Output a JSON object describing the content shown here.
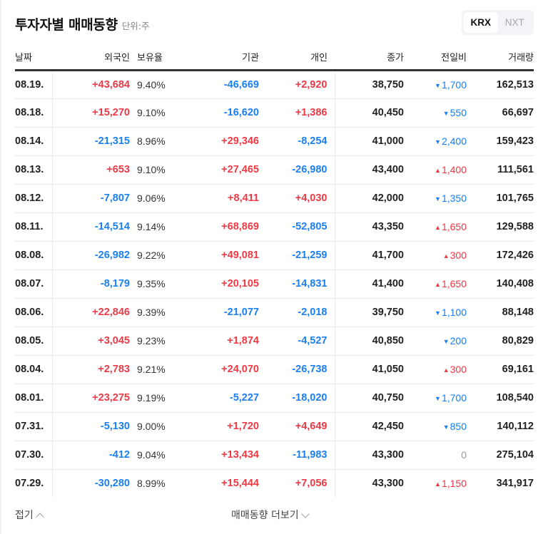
{
  "header": {
    "title": "투자자별 매매동향",
    "unit": "단위:주",
    "market_tabs": [
      {
        "label": "KRX",
        "active": true
      },
      {
        "label": "NXT",
        "active": false
      }
    ]
  },
  "table": {
    "columns": [
      "날짜",
      "외국인",
      "보유율",
      "기관",
      "개인",
      "종가",
      "전일비",
      "거래량"
    ],
    "rows": [
      {
        "date": "08.19.",
        "foreign": "+43,684",
        "foreign_dir": "up",
        "ratio": "9.40%",
        "inst": "-46,669",
        "inst_dir": "down",
        "indiv": "+2,920",
        "indiv_dir": "up",
        "close": "38,750",
        "change": "1,700",
        "change_dir": "down",
        "volume": "162,513"
      },
      {
        "date": "08.18.",
        "foreign": "+15,270",
        "foreign_dir": "up",
        "ratio": "9.10%",
        "inst": "-16,620",
        "inst_dir": "down",
        "indiv": "+1,386",
        "indiv_dir": "up",
        "close": "40,450",
        "change": "550",
        "change_dir": "down",
        "volume": "66,697"
      },
      {
        "date": "08.14.",
        "foreign": "-21,315",
        "foreign_dir": "down",
        "ratio": "8.96%",
        "inst": "+29,346",
        "inst_dir": "up",
        "indiv": "-8,254",
        "indiv_dir": "down",
        "close": "41,000",
        "change": "2,400",
        "change_dir": "down",
        "volume": "159,423"
      },
      {
        "date": "08.13.",
        "foreign": "+653",
        "foreign_dir": "up",
        "ratio": "9.10%",
        "inst": "+27,465",
        "inst_dir": "up",
        "indiv": "-26,980",
        "indiv_dir": "down",
        "close": "43,400",
        "change": "1,400",
        "change_dir": "up",
        "volume": "111,561"
      },
      {
        "date": "08.12.",
        "foreign": "-7,807",
        "foreign_dir": "down",
        "ratio": "9.06%",
        "inst": "+8,411",
        "inst_dir": "up",
        "indiv": "+4,030",
        "indiv_dir": "up",
        "close": "42,000",
        "change": "1,350",
        "change_dir": "down",
        "volume": "101,765"
      },
      {
        "date": "08.11.",
        "foreign": "-14,514",
        "foreign_dir": "down",
        "ratio": "9.14%",
        "inst": "+68,869",
        "inst_dir": "up",
        "indiv": "-52,805",
        "indiv_dir": "down",
        "close": "43,350",
        "change": "1,650",
        "change_dir": "up",
        "volume": "129,588"
      },
      {
        "date": "08.08.",
        "foreign": "-26,982",
        "foreign_dir": "down",
        "ratio": "9.22%",
        "inst": "+49,081",
        "inst_dir": "up",
        "indiv": "-21,259",
        "indiv_dir": "down",
        "close": "41,700",
        "change": "300",
        "change_dir": "up",
        "volume": "172,426"
      },
      {
        "date": "08.07.",
        "foreign": "-8,179",
        "foreign_dir": "down",
        "ratio": "9.35%",
        "inst": "+20,105",
        "inst_dir": "up",
        "indiv": "-14,831",
        "indiv_dir": "down",
        "close": "41,400",
        "change": "1,650",
        "change_dir": "up",
        "volume": "140,408"
      },
      {
        "date": "08.06.",
        "foreign": "+22,846",
        "foreign_dir": "up",
        "ratio": "9.39%",
        "inst": "-21,077",
        "inst_dir": "down",
        "indiv": "-2,018",
        "indiv_dir": "down",
        "close": "39,750",
        "change": "1,100",
        "change_dir": "down",
        "volume": "88,148"
      },
      {
        "date": "08.05.",
        "foreign": "+3,045",
        "foreign_dir": "up",
        "ratio": "9.23%",
        "inst": "+1,874",
        "inst_dir": "up",
        "indiv": "-4,527",
        "indiv_dir": "down",
        "close": "40,850",
        "change": "200",
        "change_dir": "down",
        "volume": "80,829"
      },
      {
        "date": "08.04.",
        "foreign": "+2,783",
        "foreign_dir": "up",
        "ratio": "9.21%",
        "inst": "+24,070",
        "inst_dir": "up",
        "indiv": "-26,738",
        "indiv_dir": "down",
        "close": "41,050",
        "change": "300",
        "change_dir": "up",
        "volume": "69,161"
      },
      {
        "date": "08.01.",
        "foreign": "+23,275",
        "foreign_dir": "up",
        "ratio": "9.19%",
        "inst": "-5,227",
        "inst_dir": "down",
        "indiv": "-18,020",
        "indiv_dir": "down",
        "close": "40,750",
        "change": "1,700",
        "change_dir": "down",
        "volume": "108,540"
      },
      {
        "date": "07.31.",
        "foreign": "-5,130",
        "foreign_dir": "down",
        "ratio": "9.00%",
        "inst": "+1,720",
        "inst_dir": "up",
        "indiv": "+4,649",
        "indiv_dir": "up",
        "close": "42,450",
        "change": "850",
        "change_dir": "down",
        "volume": "140,112"
      },
      {
        "date": "07.30.",
        "foreign": "-412",
        "foreign_dir": "down",
        "ratio": "9.04%",
        "inst": "+13,434",
        "inst_dir": "up",
        "indiv": "-11,983",
        "indiv_dir": "down",
        "close": "43,300",
        "change": "0",
        "change_dir": "flat",
        "volume": "275,104"
      },
      {
        "date": "07.29.",
        "foreign": "-30,280",
        "foreign_dir": "down",
        "ratio": "8.99%",
        "inst": "+15,444",
        "inst_dir": "up",
        "indiv": "+7,056",
        "indiv_dir": "up",
        "close": "43,300",
        "change": "1,150",
        "change_dir": "up",
        "volume": "341,917"
      }
    ]
  },
  "footer": {
    "fold_label": "접기",
    "more_label": "매매동향 더보기"
  },
  "icons": {
    "up_triangle": "▲",
    "down_triangle": "▼"
  },
  "colors": {
    "up": "#eb3a45",
    "down": "#1a7ff0",
    "flat": "#9a9a9a"
  }
}
